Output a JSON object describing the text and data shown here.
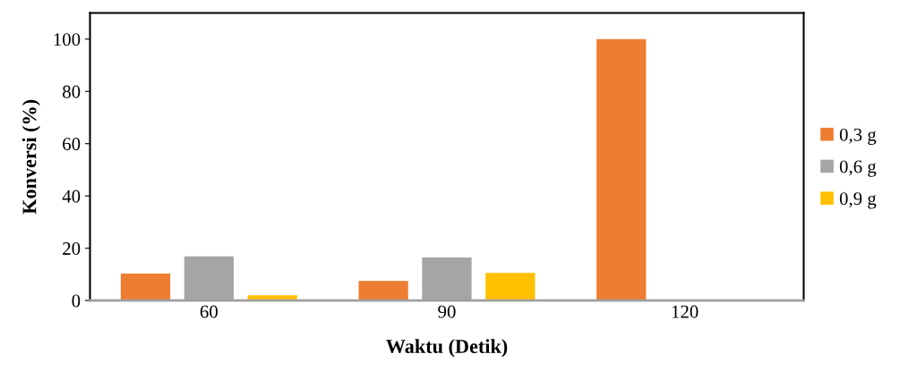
{
  "chart_data": {
    "type": "bar",
    "xlabel": "Waktu (Detik)",
    "ylabel": "Konversi (%)",
    "categories": [
      "60",
      "90",
      "120"
    ],
    "series": [
      {
        "name": "0,3 g",
        "color": "#ed7d31",
        "values": [
          10.3,
          7.5,
          100
        ]
      },
      {
        "name": "0,6 g",
        "color": "#a5a5a5",
        "values": [
          16.9,
          16.5,
          0
        ]
      },
      {
        "name": "0,9 g",
        "color": "#ffc000",
        "values": [
          2.0,
          10.6,
          0
        ]
      }
    ],
    "ylim": [
      0,
      110
    ],
    "yticks": [
      0,
      20,
      40,
      60,
      80,
      100
    ],
    "grid": false,
    "legend": "right"
  }
}
